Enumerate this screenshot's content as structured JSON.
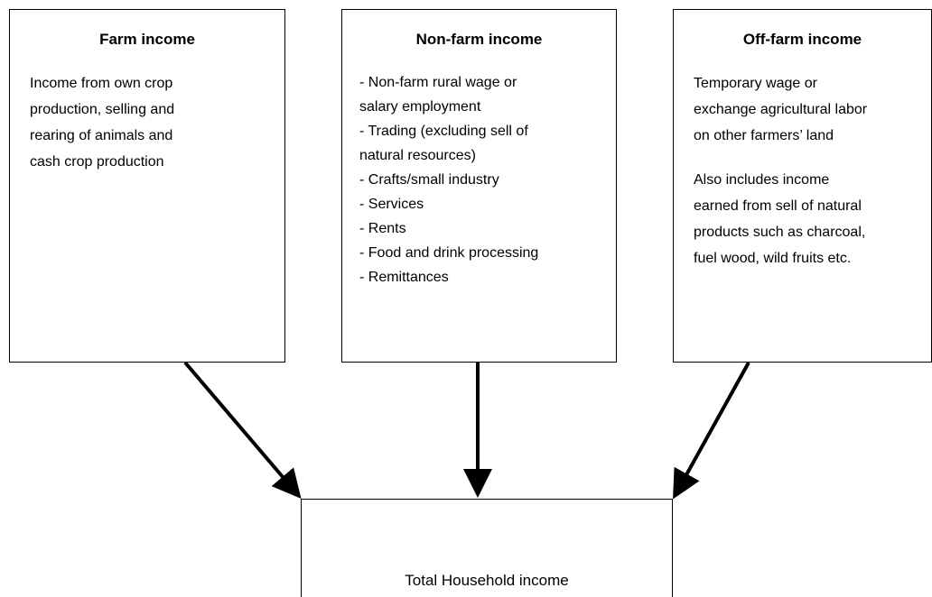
{
  "nodes": [
    {
      "title": "Farm income",
      "paragraphs": [
        [
          "Income from own crop",
          "production, selling and",
          "rearing of animals and",
          "cash crop production"
        ]
      ]
    },
    {
      "title": "Non-farm income",
      "paragraphs": [
        [
          "- Non-farm rural wage or",
          "salary employment",
          "- Trading (excluding sell of",
          "natural resources)",
          "- Crafts/small industry",
          "- Services",
          "- Rents",
          "- Food and drink processing",
          "- Remittances"
        ]
      ]
    },
    {
      "title": "Off-farm income",
      "paragraphs": [
        [
          "Temporary wage or",
          "exchange agricultural labor",
          "on other farmers’ land"
        ],
        [
          "Also includes income",
          "earned from sell of natural",
          "products such as charcoal,",
          "fuel wood, wild fruits etc."
        ]
      ]
    }
  ],
  "total": {
    "label": "Total Household income"
  }
}
